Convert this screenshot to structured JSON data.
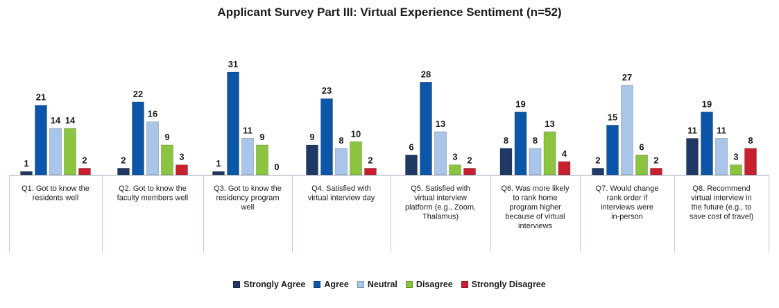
{
  "chart_data": {
    "type": "bar",
    "title": "Applicant Survey Part III: Virtual Experience Sentiment (n=52)",
    "xlabel": "",
    "ylabel": "",
    "ylim": [
      0,
      31
    ],
    "categories": [
      [
        "Q1. Got to know the",
        "residents well"
      ],
      [
        "Q2. Got to know the",
        "faculty members well"
      ],
      [
        "Q3. Got to know the",
        "residency program",
        "well"
      ],
      [
        "Q4. Satisfied with",
        "virtual interview day"
      ],
      [
        "Q5. Satisfied with",
        "virtual interview",
        "platform (e.g., Zoom,",
        "Thalamus)"
      ],
      [
        "Q6. Was more likely",
        "to rank home",
        "program higher",
        "because of virtual",
        "interviews"
      ],
      [
        "Q7. Would change",
        "rank order if",
        "interviews were",
        "in-person"
      ],
      [
        "Q8. Recommend",
        "virtual interview in",
        "the future (e.g., to",
        "save cost of travel)"
      ]
    ],
    "series": [
      {
        "name": "Strongly Agree",
        "color": "#1f3864",
        "values": [
          1,
          2,
          1,
          9,
          6,
          8,
          2,
          11
        ]
      },
      {
        "name": "Agree",
        "color": "#0b56a8",
        "values": [
          21,
          22,
          31,
          23,
          28,
          19,
          15,
          19
        ]
      },
      {
        "name": "Neutral",
        "color": "#a9c6ea",
        "values": [
          14,
          16,
          11,
          8,
          13,
          8,
          27,
          11
        ]
      },
      {
        "name": "Disagree",
        "color": "#8bc53f",
        "values": [
          14,
          9,
          9,
          10,
          3,
          13,
          6,
          3
        ]
      },
      {
        "name": "Strongly Disagree",
        "color": "#c8202f",
        "values": [
          2,
          3,
          0,
          2,
          2,
          4,
          2,
          8
        ]
      }
    ],
    "legend_position": "bottom",
    "grid": false
  }
}
